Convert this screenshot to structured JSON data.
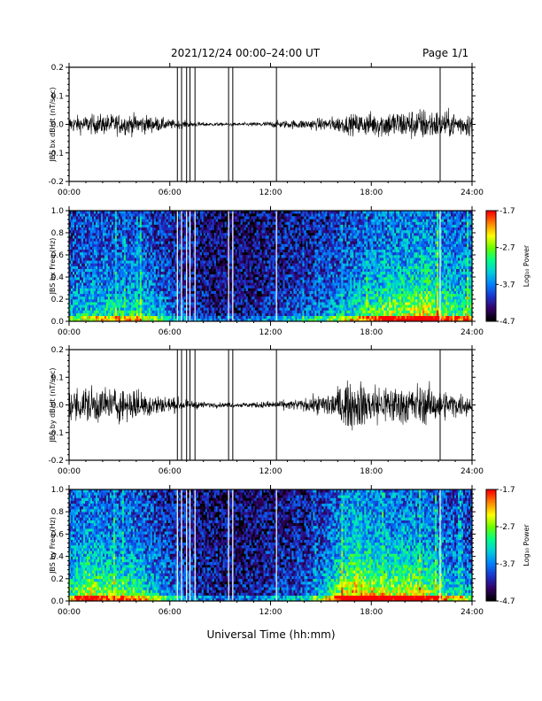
{
  "header": {
    "title": "2021/12/24  00:00–24:00 UT",
    "page": "Page 1/1"
  },
  "xlabel": "Universal Time (hh:mm)",
  "colors": {
    "trace": "#000000",
    "spectrogram_background": "#000000",
    "colormap": [
      "#000000",
      "#330066",
      "#1a33cc",
      "#0080ff",
      "#00ccdd",
      "#00ff88",
      "#66ff00",
      "#ffff00",
      "#ff8800",
      "#ff0000"
    ]
  },
  "chart_data": [
    {
      "type": "line",
      "title": "",
      "xlabel": "",
      "ylabel": "JBS bx dB/dt (nT/sec)",
      "x_range_hours": [
        0,
        24
      ],
      "xticks": [
        "00:00",
        "06:00",
        "12:00",
        "18:00",
        "24:00"
      ],
      "ylim": [
        -0.2,
        0.2
      ],
      "yticks": [
        "-0.2",
        "-0.1",
        "0.0",
        "0.1",
        "0.2"
      ],
      "amplitude_profile": {
        "hours": [
          0,
          2,
          4,
          5,
          6,
          7,
          8,
          9,
          10,
          11,
          12,
          13,
          14,
          15,
          16,
          17,
          18,
          19,
          20,
          21,
          22,
          23,
          24
        ],
        "amplitude_nT_per_sec": [
          0.02,
          0.025,
          0.025,
          0.02,
          0.012,
          0.008,
          0.005,
          0.004,
          0.004,
          0.005,
          0.008,
          0.01,
          0.012,
          0.015,
          0.02,
          0.025,
          0.03,
          0.035,
          0.035,
          0.04,
          0.035,
          0.03,
          0.03
        ]
      },
      "spike_times_hours": [
        6.45,
        6.7,
        7.0,
        7.2,
        7.5,
        9.5,
        9.75,
        12.35,
        22.1
      ]
    },
    {
      "type": "heatmap",
      "title": "",
      "xlabel": "",
      "ylabel": "JBS bx Freq (Hz)",
      "x_range_hours": [
        0,
        24
      ],
      "xticks": [
        "00:00",
        "06:00",
        "12:00",
        "18:00",
        "24:00"
      ],
      "ylim": [
        0.0,
        1.0
      ],
      "yticks": [
        "0.0",
        "0.2",
        "0.4",
        "0.6",
        "0.8",
        "1.0"
      ],
      "colorbar": {
        "label": "Log₁₀ Power",
        "range": [
          -4.7,
          -1.7
        ],
        "ticks": [
          "-1.7",
          "-2.7",
          "-3.7",
          "-4.7"
        ]
      },
      "gap_times_hours": [
        6.45,
        6.7,
        7.0,
        7.2,
        7.5,
        9.5,
        9.75,
        12.35,
        22.1
      ]
    },
    {
      "type": "line",
      "title": "",
      "xlabel": "",
      "ylabel": "JBS by dB/dt (nT/sec)",
      "x_range_hours": [
        0,
        24
      ],
      "xticks": [
        "00:00",
        "06:00",
        "12:00",
        "18:00",
        "24:00"
      ],
      "ylim": [
        -0.2,
        0.2
      ],
      "yticks": [
        "-0.2",
        "-0.1",
        "0.0",
        "0.1",
        "0.2"
      ],
      "amplitude_profile": {
        "hours": [
          0,
          1,
          2,
          4,
          5,
          6,
          7,
          8,
          9,
          10,
          11,
          12,
          13,
          14,
          15,
          16,
          17,
          18,
          19,
          20,
          21,
          22,
          23,
          24
        ],
        "amplitude_nT_per_sec": [
          0.035,
          0.05,
          0.045,
          0.04,
          0.03,
          0.02,
          0.012,
          0.008,
          0.006,
          0.006,
          0.007,
          0.01,
          0.012,
          0.015,
          0.025,
          0.045,
          0.06,
          0.055,
          0.05,
          0.05,
          0.05,
          0.04,
          0.03,
          0.025
        ]
      },
      "spike_times_hours": [
        6.45,
        6.7,
        7.0,
        7.2,
        7.5,
        9.5,
        9.75,
        12.35,
        22.1
      ]
    },
    {
      "type": "heatmap",
      "title": "",
      "xlabel": "Universal Time (hh:mm)",
      "ylabel": "JBS by Freq (Hz)",
      "x_range_hours": [
        0,
        24
      ],
      "xticks": [
        "00:00",
        "06:00",
        "12:00",
        "18:00",
        "24:00"
      ],
      "ylim": [
        0.0,
        1.0
      ],
      "yticks": [
        "0.0",
        "0.2",
        "0.4",
        "0.6",
        "0.8",
        "1.0"
      ],
      "colorbar": {
        "label": "Log₁₀ Power",
        "range": [
          -4.7,
          -1.7
        ],
        "ticks": [
          "-1.7",
          "-2.7",
          "-3.7",
          "-4.7"
        ]
      },
      "gap_times_hours": [
        6.45,
        6.7,
        7.0,
        7.2,
        7.5,
        9.5,
        9.75,
        12.35,
        22.1
      ]
    }
  ]
}
